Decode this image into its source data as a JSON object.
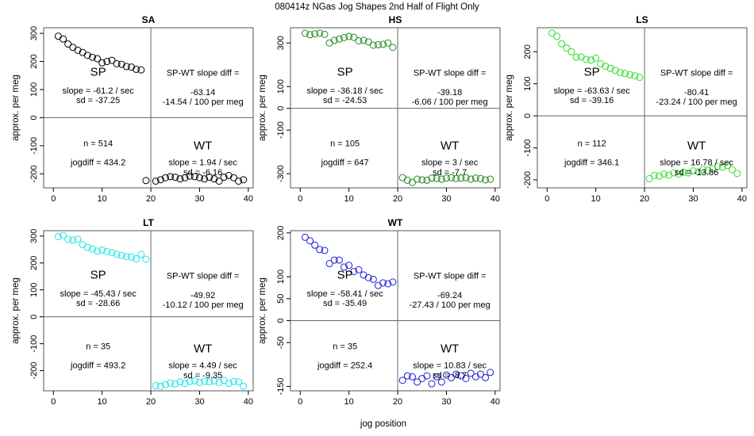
{
  "figure_title": "080414z    NGas Jog Shapes 2nd Half of Flight Only",
  "xlabel_common": "jog position",
  "chart_data": [
    {
      "type": "scatter",
      "title": "SA",
      "color": "#000000",
      "ylabel": "approx. per meg",
      "xlim": [
        -2,
        41
      ],
      "ylim": [
        -250,
        320
      ],
      "xticks": [
        0,
        10,
        20,
        30,
        40
      ],
      "yticks": [
        -200,
        -100,
        0,
        100,
        200,
        300
      ],
      "x": [
        1,
        2,
        3,
        4,
        5,
        6,
        7,
        8,
        9,
        10,
        11,
        12,
        13,
        14,
        15,
        16,
        17,
        18,
        19,
        21,
        22,
        23,
        24,
        25,
        26,
        27,
        28,
        29,
        30,
        31,
        32,
        33,
        34,
        35,
        36,
        37,
        38,
        39
      ],
      "y": [
        290,
        280,
        262,
        250,
        240,
        232,
        222,
        215,
        210,
        195,
        200,
        204,
        192,
        190,
        182,
        180,
        172,
        170,
        -224,
        -226,
        -221,
        -214,
        -210,
        -212,
        -218,
        -214,
        -208,
        -210,
        -214,
        -218,
        -212,
        -218,
        -226,
        -212,
        -206,
        -214,
        -226,
        -221
      ],
      "sp_label": "SP",
      "wt_label": "WT",
      "sp_slope": "slope = -61.2 / sec",
      "sp_sd": "sd = -37.25",
      "diff_title": "SP-WT slope diff =",
      "diff_value": "-63.14",
      "diff_per_meg": "-14.54 / 100 per meg",
      "n": "n = 514",
      "jogdiff": "jogdiff = 434.2",
      "wt_slope": "slope = 1.94 / sec",
      "wt_sd": "sd = -6.16"
    },
    {
      "type": "scatter",
      "title": "HS",
      "color": "#228B22",
      "ylabel": "approx. per meg",
      "xlim": [
        -2,
        41
      ],
      "ylim": [
        -365,
        370
      ],
      "xticks": [
        0,
        10,
        20,
        30,
        40
      ],
      "yticks": [
        -300,
        -100,
        0,
        100,
        300
      ],
      "x": [
        1,
        2,
        3,
        4,
        5,
        6,
        7,
        8,
        9,
        10,
        11,
        12,
        13,
        14,
        15,
        16,
        17,
        18,
        19,
        21,
        22,
        23,
        24,
        25,
        26,
        27,
        28,
        29,
        30,
        31,
        32,
        33,
        34,
        35,
        36,
        37,
        38,
        39
      ],
      "y": [
        345,
        338,
        342,
        345,
        340,
        300,
        312,
        318,
        325,
        330,
        326,
        310,
        312,
        305,
        290,
        292,
        294,
        300,
        280,
        -318,
        -330,
        -340,
        -325,
        -328,
        -330,
        -320,
        -322,
        -325,
        -320,
        -318,
        -322,
        -320,
        -318,
        -325,
        -320,
        -322,
        -328,
        -325
      ],
      "sp_label": "SP",
      "wt_label": "WT",
      "sp_slope": "slope = -36.18 / sec",
      "sp_sd": "sd = -24.53",
      "diff_title": "SP-WT slope diff =",
      "diff_value": "-39.18",
      "diff_per_meg": "-6.06 / 100 per meg",
      "n": "n = 105",
      "jogdiff": "jogdiff = 647",
      "wt_slope": "slope = 3 / sec",
      "wt_sd": "sd = -7.7"
    },
    {
      "type": "scatter",
      "title": "LS",
      "color": "#33DD33",
      "ylabel": "approx. per meg",
      "xlim": [
        -2,
        41
      ],
      "ylim": [
        -225,
        275
      ],
      "xticks": [
        0,
        10,
        20,
        30,
        40
      ],
      "yticks": [
        -200,
        -100,
        0,
        100,
        200
      ],
      "x": [
        1,
        2,
        3,
        4,
        5,
        6,
        7,
        8,
        9,
        10,
        11,
        12,
        13,
        14,
        15,
        16,
        17,
        18,
        19,
        21,
        22,
        23,
        24,
        25,
        26,
        27,
        28,
        29,
        30,
        31,
        32,
        33,
        34,
        35,
        36,
        37,
        38,
        39
      ],
      "y": [
        258,
        248,
        225,
        212,
        200,
        183,
        184,
        176,
        174,
        180,
        162,
        155,
        148,
        142,
        135,
        132,
        128,
        125,
        120,
        -196,
        -186,
        -188,
        -182,
        -185,
        -178,
        -182,
        -176,
        -178,
        -172,
        -175,
        -168,
        -170,
        -165,
        -158,
        -160,
        -155,
        -168,
        -180
      ],
      "sp_label": "SP",
      "wt_label": "WT",
      "sp_slope": "slope = -63.63 / sec",
      "sp_sd": "sd = -39.16",
      "diff_title": "SP-WT slope diff =",
      "diff_value": "-80.41",
      "diff_per_meg": "-23.24 / 100 per meg",
      "n": "n = 112",
      "jogdiff": "jogdiff = 346.1",
      "wt_slope": "slope = 16.78 / sec",
      "wt_sd": "sd = -13.86"
    },
    {
      "type": "scatter",
      "title": "LT",
      "color": "#22E5E5",
      "ylabel": "approx. per meg",
      "xlim": [
        -2,
        41
      ],
      "ylim": [
        -275,
        320
      ],
      "xticks": [
        0,
        10,
        20,
        30,
        40
      ],
      "yticks": [
        -200,
        -100,
        0,
        100,
        200,
        300
      ],
      "x": [
        1,
        2,
        3,
        4,
        5,
        6,
        7,
        8,
        9,
        10,
        11,
        12,
        13,
        14,
        15,
        16,
        17,
        18,
        19,
        21,
        22,
        23,
        24,
        25,
        26,
        27,
        28,
        29,
        30,
        31,
        32,
        33,
        34,
        35,
        36,
        37,
        38,
        39
      ],
      "y": [
        298,
        302,
        288,
        285,
        288,
        268,
        258,
        252,
        244,
        248,
        242,
        238,
        232,
        228,
        224,
        222,
        216,
        232,
        214,
        -256,
        -258,
        -252,
        -246,
        -250,
        -242,
        -248,
        -240,
        -238,
        -244,
        -240,
        -242,
        -238,
        -244,
        -236,
        -248,
        -240,
        -242,
        -258
      ],
      "sp_label": "SP",
      "wt_label": "WT",
      "sp_slope": "slope = -45.43 / sec",
      "sp_sd": "sd = -28.66",
      "diff_title": "SP-WT slope diff =",
      "diff_value": "-49.92",
      "diff_per_meg": "-10.12 / 100 per meg",
      "n": "n = 35",
      "jogdiff": "jogdiff = 493.2",
      "wt_slope": "slope = 4.49 / sec",
      "wt_sd": "sd = -9.35"
    },
    {
      "type": "scatter",
      "title": "WT",
      "color": "#1E1ED9",
      "ylabel": "approx. per meg",
      "xlim": [
        -2,
        41
      ],
      "ylim": [
        -160,
        205
      ],
      "xticks": [
        0,
        10,
        20,
        30,
        40
      ],
      "yticks": [
        -150,
        -50,
        0,
        50,
        100,
        200
      ],
      "x": [
        1,
        2,
        3,
        4,
        5,
        6,
        7,
        8,
        9,
        10,
        11,
        12,
        13,
        14,
        15,
        16,
        17,
        18,
        19,
        21,
        22,
        23,
        24,
        25,
        26,
        27,
        28,
        29,
        30,
        31,
        32,
        33,
        34,
        35,
        36,
        37,
        38,
        39
      ],
      "y": [
        190,
        182,
        172,
        162,
        160,
        130,
        138,
        138,
        122,
        126,
        112,
        116,
        104,
        98,
        94,
        80,
        86,
        84,
        88,
        -136,
        -126,
        -128,
        -140,
        -132,
        -126,
        -144,
        -128,
        -140,
        -124,
        -130,
        -122,
        -126,
        -132,
        -120,
        -128,
        -122,
        -130,
        -118
      ],
      "sp_label": "SP",
      "wt_label": "WT",
      "sp_slope": "slope = -58.41 / sec",
      "sp_sd": "sd = -35.49",
      "diff_title": "SP-WT slope diff =",
      "diff_value": "-69.24",
      "diff_per_meg": "-27.43 / 100 per meg",
      "n": "n = 35",
      "jogdiff": "jogdiff = 252.4",
      "wt_slope": "slope = 10.83 / sec",
      "wt_sd": "sd = -8.7"
    }
  ]
}
